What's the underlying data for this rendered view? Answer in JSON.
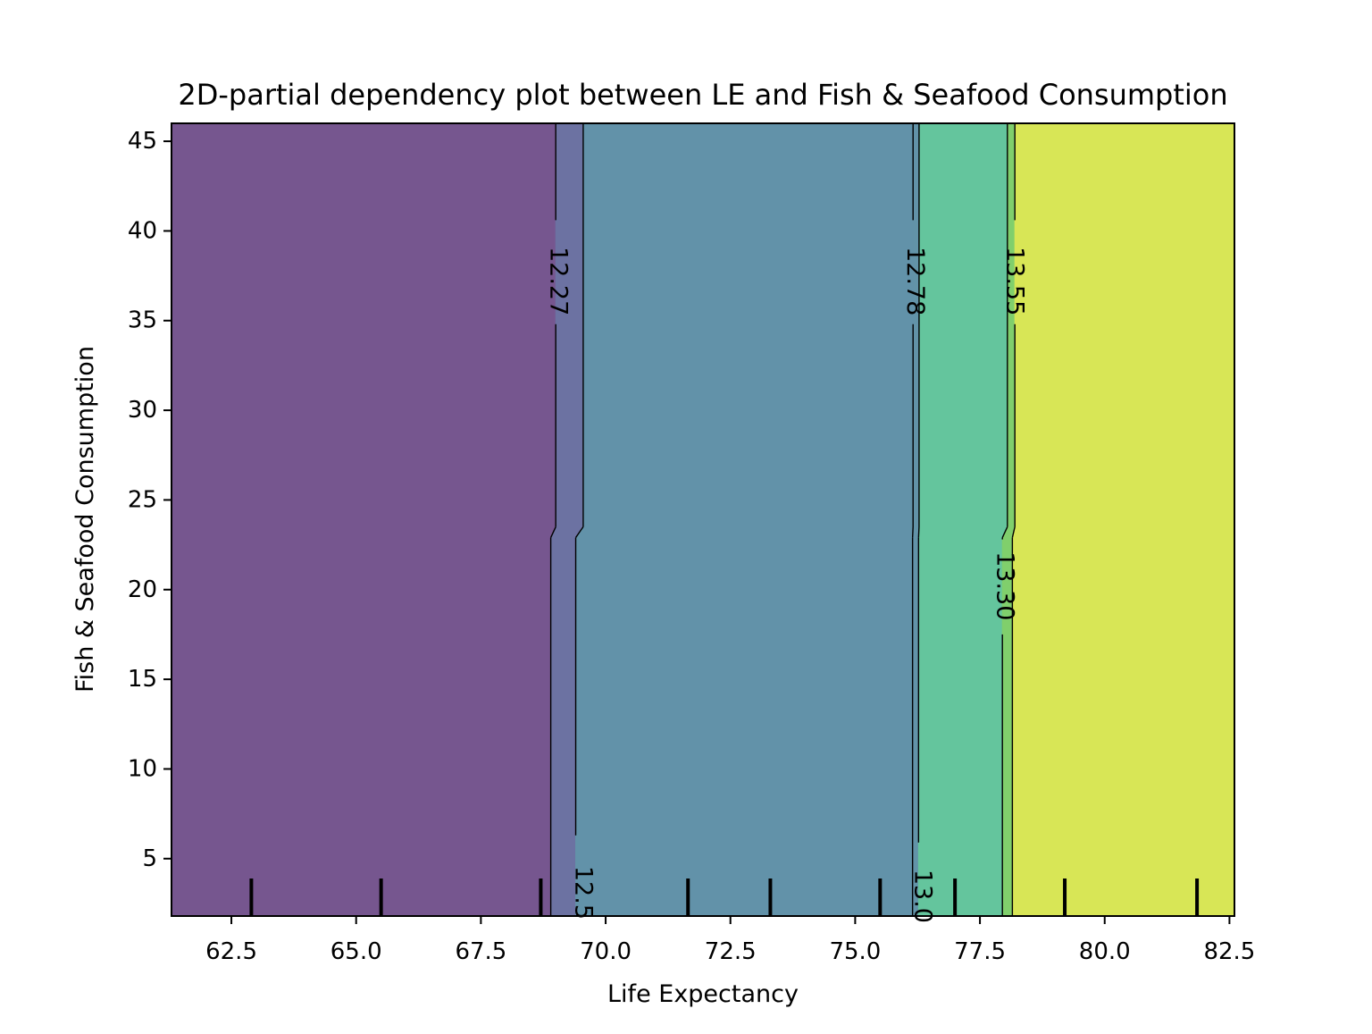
{
  "chart_data": {
    "type": "contour",
    "title": "2D-partial dependency plot between LE and Fish & Seafood Consumption",
    "xlabel": "Life Expectancy",
    "ylabel": "Fish & Seafood Consumption",
    "xlim": [
      61.3,
      82.6
    ],
    "ylim": [
      1.8,
      46.0
    ],
    "x_ticks": [
      62.5,
      65.0,
      67.5,
      70.0,
      72.5,
      75.0,
      77.5,
      80.0,
      82.5
    ],
    "x_tick_labels": [
      "62.5",
      "65.0",
      "67.5",
      "70.0",
      "72.5",
      "75.0",
      "77.5",
      "80.0",
      "82.5"
    ],
    "y_ticks": [
      5,
      10,
      15,
      20,
      25,
      30,
      35,
      40,
      45
    ],
    "y_tick_labels": [
      "5",
      "10",
      "15",
      "20",
      "25",
      "30",
      "35",
      "40",
      "45"
    ],
    "contour_levels": [
      {
        "value": 12.27,
        "label": "12.27"
      },
      {
        "value": 12.53,
        "label": "12.5"
      },
      {
        "value": 12.78,
        "label": "12.78"
      },
      {
        "value": 13.04,
        "label": "13.0"
      },
      {
        "value": 13.3,
        "label": "13.30"
      },
      {
        "value": 13.55,
        "label": "13.55"
      }
    ],
    "regions": [
      {
        "range": "< 12.27",
        "color": "#76568f"
      },
      {
        "range": "12.27 - 12.53",
        "color": "#6c72a2"
      },
      {
        "range": "12.53 - 12.78",
        "color": "#6292a9"
      },
      {
        "range": "12.78 - 13.04",
        "color": "#6293a8"
      },
      {
        "range": "13.04 - 13.30",
        "color": "#64c59d"
      },
      {
        "range": "13.30 - 13.55",
        "color": "#80cf6c"
      },
      {
        "range": "> 13.55",
        "color": "#d8e656"
      }
    ],
    "rug_x_deciles": [
      62.9,
      65.5,
      68.7,
      71.65,
      73.3,
      75.5,
      77.0,
      79.2,
      81.85
    ],
    "grid": false,
    "legend": "none"
  }
}
